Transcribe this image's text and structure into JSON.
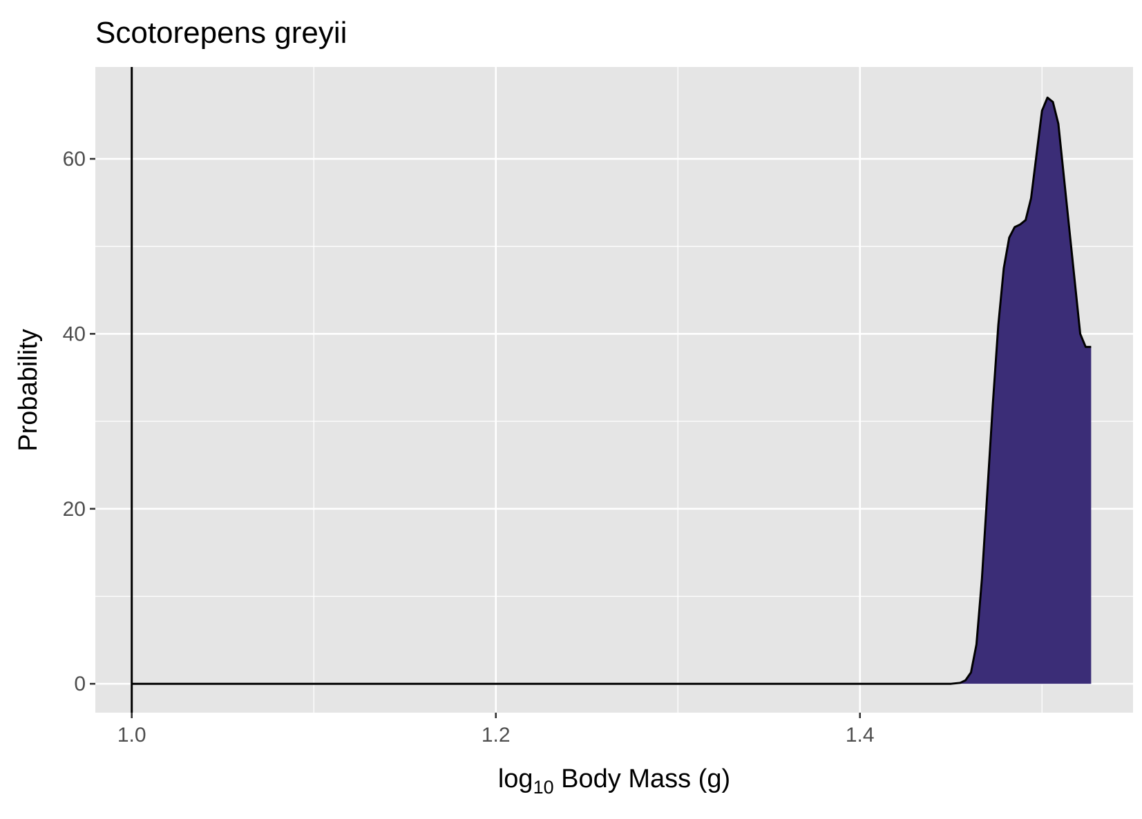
{
  "chart_data": {
    "type": "area",
    "title": "Scotorepens greyii",
    "xlabel": {
      "prefix": "log",
      "subscript": "10",
      "suffix": " Body Mass (g)"
    },
    "ylabel": "Probability",
    "xlim": [
      0.98,
      1.55
    ],
    "ylim": [
      -3.3,
      70.5
    ],
    "x_ticks": [
      {
        "value": 1.0,
        "label": "1.0"
      },
      {
        "value": 1.2,
        "label": "1.2"
      },
      {
        "value": 1.4,
        "label": "1.4"
      }
    ],
    "x_minor_ticks": [
      1.1,
      1.3,
      1.5
    ],
    "y_ticks": [
      {
        "value": 0,
        "label": "0"
      },
      {
        "value": 20,
        "label": "20"
      },
      {
        "value": 40,
        "label": "40"
      },
      {
        "value": 60,
        "label": "60"
      }
    ],
    "y_minor_ticks": [
      10,
      30,
      50
    ],
    "grid": true,
    "vline": 1.0,
    "fill_color": "#3b2d77",
    "line_color": "#000000",
    "panel_color": "#e5e5e5",
    "grid_color": "#ffffff",
    "series": [
      {
        "x": [
          1.0,
          1.1,
          1.2,
          1.3,
          1.4,
          1.45,
          1.455,
          1.458,
          1.461,
          1.464,
          1.467,
          1.47,
          1.473,
          1.476,
          1.479,
          1.482,
          1.485,
          1.488,
          1.491,
          1.494,
          1.497,
          1.5,
          1.503,
          1.506,
          1.509,
          1.512,
          1.515,
          1.518,
          1.521,
          1.524,
          1.527
        ],
        "y": [
          0,
          0,
          0,
          0,
          0,
          0,
          0.1,
          0.4,
          1.3,
          4.5,
          12.0,
          22.0,
          32.0,
          41.0,
          47.5,
          51.0,
          52.2,
          52.5,
          53.0,
          55.5,
          60.5,
          65.5,
          67.0,
          66.5,
          64.0,
          58.0,
          52.0,
          46.0,
          40.0,
          38.5,
          38.5
        ]
      }
    ]
  }
}
